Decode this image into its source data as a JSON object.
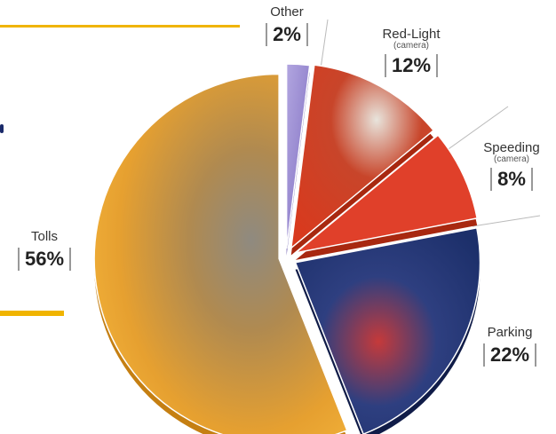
{
  "chart_data": {
    "type": "pie",
    "title": "",
    "slices": [
      {
        "name": "Tolls",
        "sub": "",
        "pct_label": "56%",
        "value": 56,
        "color": "#eda02a"
      },
      {
        "name": "Other",
        "sub": "",
        "pct_label": "2%",
        "value": 2,
        "color": "#9a8ad0"
      },
      {
        "name": "Red-Light",
        "sub": "(camera)",
        "pct_label": "12%",
        "value": 12,
        "color": "#d63a22"
      },
      {
        "name": "Speeding",
        "sub": "(camera)",
        "pct_label": "8%",
        "value": 8,
        "color": "#e0402a"
      },
      {
        "name": "Parking",
        "sub": "",
        "pct_label": "22%",
        "value": 22,
        "color": "#1f3575"
      }
    ]
  }
}
